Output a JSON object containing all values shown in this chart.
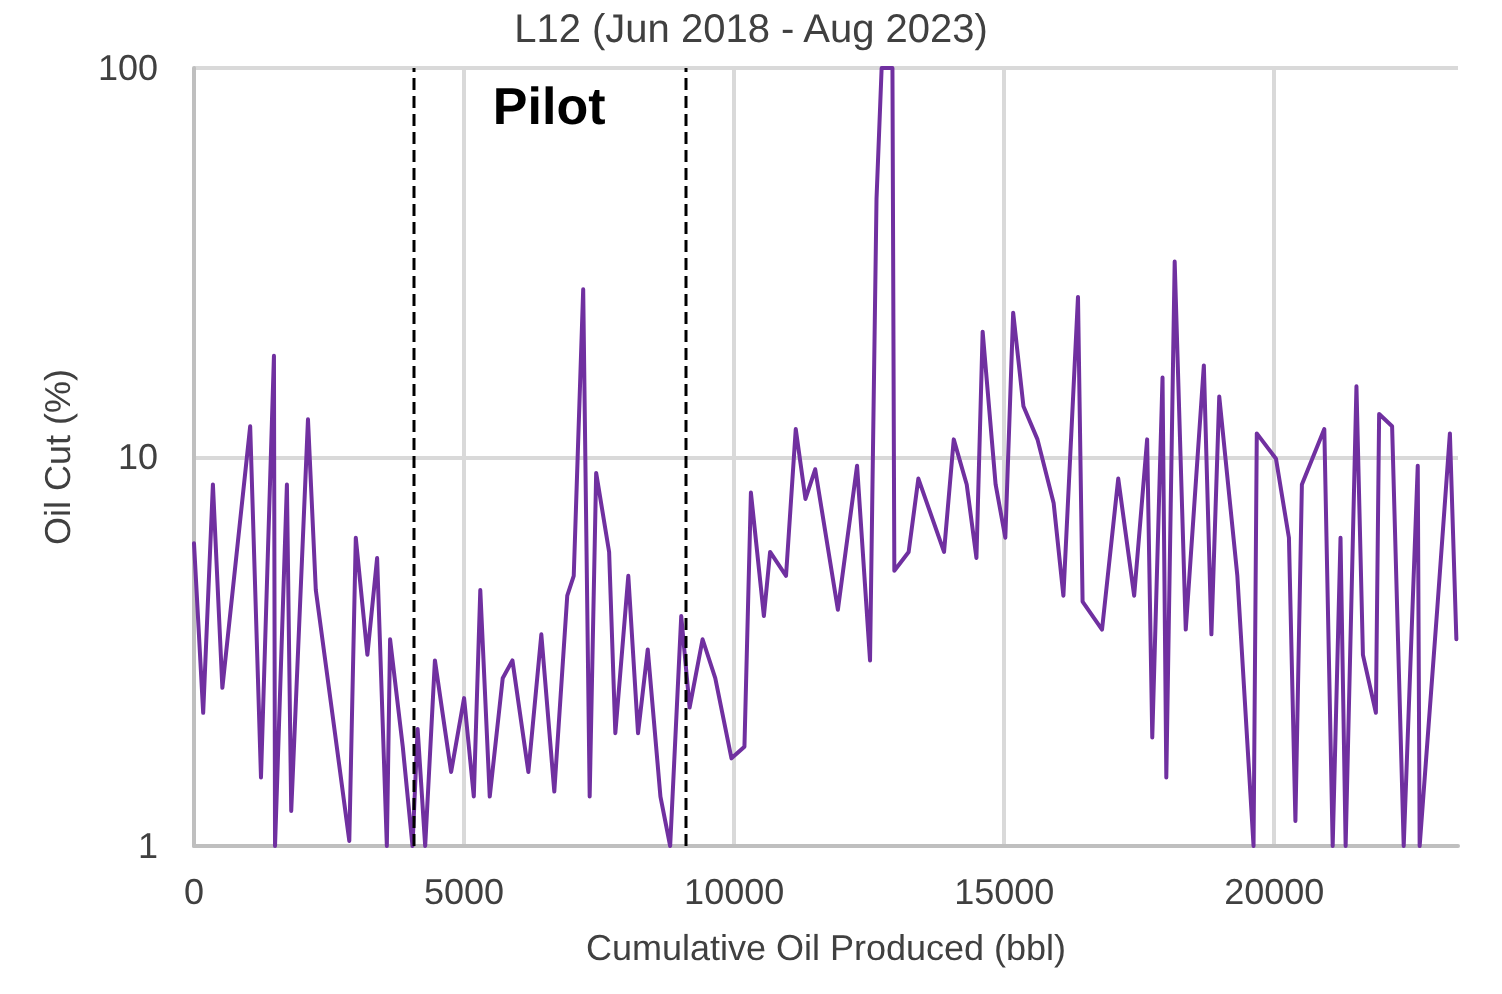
{
  "chart_data": {
    "type": "line",
    "title": "L12 (Jun 2018 - Aug 2023)",
    "xlabel": "Cumulative Oil Produced (bbl)",
    "ylabel": "Oil Cut (%)",
    "x": [
      0,
      170,
      350,
      525,
      1040,
      1240,
      1480,
      1500,
      1720,
      1800,
      2110,
      2255,
      2610,
      2875,
      2995,
      3210,
      3390,
      3570,
      3630,
      3865,
      4045,
      4140,
      4280,
      4460,
      4760,
      5000,
      5180,
      5300,
      5475,
      5715,
      5895,
      6190,
      6430,
      6670,
      6910,
      7030,
      7205,
      7325,
      7445,
      7685,
      7800,
      8040,
      8220,
      8400,
      8635,
      8815,
      9020,
      9175,
      9415,
      9650,
      9950,
      10190,
      10310,
      10550,
      10665,
      10960,
      11140,
      11320,
      11500,
      11920,
      12275,
      12515,
      12635,
      12730,
      12930,
      12965,
      13230,
      13410,
      13885,
      14065,
      14305,
      14485,
      14600,
      14840,
      15020,
      15165,
      15355,
      15615,
      15915,
      16095,
      16365,
      16450,
      16810,
      17110,
      17405,
      17645,
      17740,
      17930,
      18000,
      18155,
      18360,
      18695,
      18835,
      18980,
      19315,
      19615,
      19675,
      20030,
      20270,
      20390,
      20510,
      20925,
      21080,
      21225,
      21320,
      21520,
      21640,
      21880,
      21940,
      22180,
      22395,
      22655,
      22690,
      23015,
      23250,
      23370
    ],
    "series": [
      {
        "color": "#7030a0",
        "values": [
          6.0,
          2.2,
          8.5,
          2.55,
          12,
          1.5,
          18.2,
          1,
          8.5,
          1.23,
          12.5,
          4.55,
          1.95,
          1.03,
          6.2,
          3.1,
          5.5,
          1,
          3.4,
          1.8,
          1,
          2.0,
          1.0,
          3.0,
          1.55,
          2.4,
          1.34,
          4.55,
          1.34,
          2.7,
          3.0,
          1.55,
          3.5,
          1.38,
          4.4,
          4.95,
          27,
          1.34,
          9.1,
          5.7,
          1.95,
          4.95,
          1.95,
          3.2,
          1.34,
          1,
          3.9,
          2.27,
          3.4,
          2.7,
          1.68,
          1.8,
          8.1,
          3.9,
          5.7,
          4.95,
          11.8,
          7.8,
          9.3,
          4.05,
          9.5,
          3.0,
          46,
          100,
          100,
          5.1,
          5.7,
          8.8,
          5.7,
          11.1,
          8.5,
          5.5,
          21,
          8.5,
          6.2,
          23.5,
          13.5,
          11.1,
          7.6,
          4.4,
          25.8,
          4.25,
          3.6,
          8.8,
          4.4,
          11.1,
          1.9,
          16,
          1.5,
          31.8,
          3.6,
          17.2,
          3.5,
          14.3,
          4.95,
          1,
          11.5,
          9.9,
          6.2,
          1.16,
          8.5,
          11.8,
          1,
          6.2,
          1,
          15.2,
          3.1,
          2.2,
          12.9,
          12,
          1,
          9.5,
          1,
          4.05,
          11.5,
          3.4
        ]
      }
    ],
    "xlim": [
      0,
      23400
    ],
    "xticks": [
      0,
      5000,
      10000,
      15000,
      20000
    ],
    "ylim": [
      1,
      100
    ],
    "yticks": [
      1,
      10,
      100
    ],
    "log": "y",
    "grid": true,
    "marker": "none",
    "line_style": "solid",
    "ref_lines": [
      {
        "axis": "x",
        "value": 4050,
        "color": "#000000",
        "line_style": "dashed"
      },
      {
        "axis": "x",
        "value": 9100,
        "color": "#000000",
        "line_style": "dashed"
      }
    ],
    "annotations": [
      "Pilot"
    ]
  }
}
